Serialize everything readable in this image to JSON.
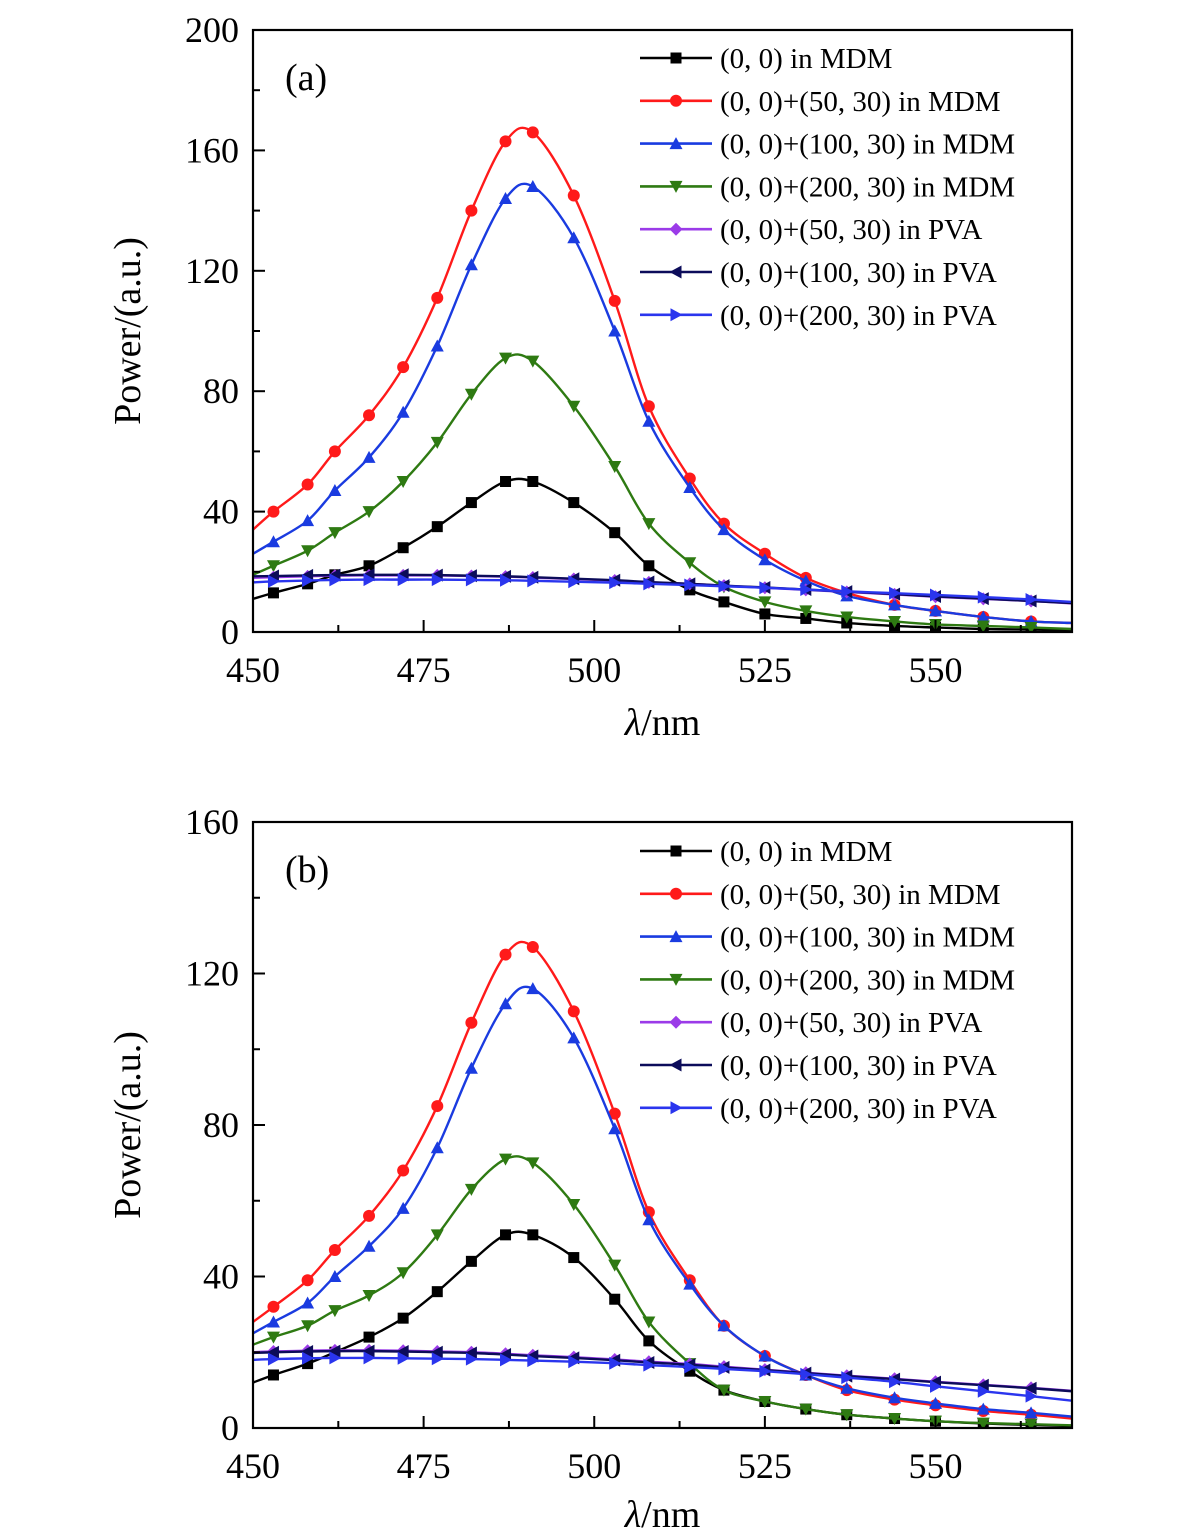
{
  "chart_data": [
    {
      "type": "line",
      "panel_label": "(a)",
      "xlabel_symbol": "λ",
      "xlabel_unit": "/nm",
      "ylabel": "Power/(a.u.)",
      "xlim": [
        450,
        570
      ],
      "ylim": [
        0,
        200
      ],
      "xticks": [
        450,
        475,
        500,
        525,
        550
      ],
      "yticks": [
        0,
        40,
        80,
        120,
        160,
        200
      ],
      "legend_position": "top-right",
      "x": [
        450,
        453,
        458,
        462,
        467,
        472,
        477,
        482,
        487,
        491,
        497,
        503,
        508,
        514,
        519,
        525,
        531,
        537,
        544,
        550,
        557,
        564,
        570
      ],
      "series": [
        {
          "name": "(0, 0) in MDM",
          "color": "#000000",
          "marker": "square",
          "values": [
            11,
            13,
            16,
            19,
            22,
            28,
            35,
            43,
            50,
            50,
            43,
            33,
            22,
            14,
            10,
            6,
            4.5,
            3,
            2,
            1.5,
            1,
            0.8,
            0.5
          ]
        },
        {
          "name": "(0, 0)+(50, 30) in MDM",
          "color": "#ff1a1a",
          "marker": "circle",
          "values": [
            34,
            40,
            49,
            60,
            72,
            88,
            111,
            140,
            163,
            166,
            145,
            110,
            75,
            51,
            36,
            26,
            18,
            13,
            9,
            7,
            5,
            3.5,
            3
          ]
        },
        {
          "name": "(0, 0)+(100, 30) in MDM",
          "color": "#1a3be0",
          "marker": "triangle-up",
          "values": [
            26,
            30,
            37,
            47,
            58,
            73,
            95,
            122,
            144,
            148,
            131,
            100,
            70,
            48,
            34,
            24,
            17,
            12,
            9,
            7,
            5,
            3.5,
            3
          ]
        },
        {
          "name": "(0, 0)+(200, 30) in MDM",
          "color": "#2e7a12",
          "marker": "triangle-down",
          "values": [
            19,
            22,
            27,
            33,
            40,
            50,
            63,
            79,
            91,
            90,
            75,
            55,
            36,
            23,
            15,
            10,
            7,
            5,
            3.5,
            2.5,
            2,
            1.5,
            1
          ]
        },
        {
          "name": "(0, 0)+(50, 30) in PVA",
          "color": "#9b3be8",
          "marker": "diamond",
          "values": [
            18,
            18.2,
            18.5,
            18.7,
            18.8,
            18.8,
            18.8,
            18.6,
            18.4,
            18.1,
            17.6,
            17.1,
            16.5,
            16,
            15.4,
            14.7,
            14,
            13.3,
            12.5,
            11.7,
            11,
            10.3,
            9.5
          ]
        },
        {
          "name": "(0, 0)+(100, 30) in PVA",
          "color": "#0c0c5a",
          "marker": "triangle-left",
          "values": [
            18.5,
            18.6,
            18.8,
            18.9,
            19,
            19,
            18.9,
            18.7,
            18.5,
            18.2,
            17.7,
            17.2,
            16.6,
            16,
            15.4,
            14.8,
            14.1,
            13.4,
            12.6,
            11.8,
            11.1,
            10.3,
            9.6
          ]
        },
        {
          "name": "(0, 0)+(200, 30) in PVA",
          "color": "#2a35ee",
          "marker": "triangle-right",
          "values": [
            16.5,
            16.8,
            17.1,
            17.3,
            17.4,
            17.4,
            17.4,
            17.3,
            17.2,
            17,
            16.7,
            16.4,
            16,
            15.6,
            15.2,
            14.7,
            14.1,
            13.5,
            12.9,
            12.3,
            11.6,
            10.8,
            10
          ]
        }
      ]
    },
    {
      "type": "line",
      "panel_label": "(b)",
      "xlabel_symbol": "λ",
      "xlabel_unit": "/nm",
      "ylabel": "Power/(a.u.)",
      "xlim": [
        450,
        570
      ],
      "ylim": [
        0,
        160
      ],
      "xticks": [
        450,
        475,
        500,
        525,
        550
      ],
      "yticks": [
        0,
        40,
        80,
        120,
        160
      ],
      "legend_position": "top-right",
      "x": [
        450,
        453,
        458,
        462,
        467,
        472,
        477,
        482,
        487,
        491,
        497,
        503,
        508,
        514,
        519,
        525,
        531,
        537,
        544,
        550,
        557,
        564,
        570
      ],
      "series": [
        {
          "name": "(0, 0) in MDM",
          "color": "#000000",
          "marker": "square",
          "values": [
            12,
            14,
            17,
            20,
            24,
            29,
            36,
            44,
            51,
            51,
            45,
            34,
            23,
            15,
            10,
            7,
            5,
            3.5,
            2.5,
            1.8,
            1.2,
            0.8,
            0.5
          ]
        },
        {
          "name": "(0, 0)+(50, 30) in MDM",
          "color": "#ff1a1a",
          "marker": "circle",
          "values": [
            28,
            32,
            39,
            47,
            56,
            68,
            85,
            107,
            125,
            127,
            110,
            83,
            57,
            39,
            27,
            19,
            14,
            10,
            7.5,
            6,
            4.5,
            3.5,
            2.5
          ]
        },
        {
          "name": "(0, 0)+(100, 30) in MDM",
          "color": "#1a3be0",
          "marker": "triangle-up",
          "values": [
            25,
            28,
            33,
            40,
            48,
            58,
            74,
            95,
            112,
            116,
            103,
            79,
            55,
            38,
            27,
            19,
            14,
            10.5,
            8,
            6.5,
            5,
            4,
            3
          ]
        },
        {
          "name": "(0, 0)+(200, 30) in MDM",
          "color": "#2e7a12",
          "marker": "triangle-down",
          "values": [
            22,
            24,
            27,
            31,
            35,
            41,
            51,
            63,
            71,
            70,
            59,
            43,
            28,
            17,
            10,
            7,
            5,
            3.5,
            2.5,
            1.8,
            1.3,
            1,
            0.7
          ]
        },
        {
          "name": "(0, 0)+(50, 30) in PVA",
          "color": "#9b3be8",
          "marker": "diamond",
          "values": [
            20,
            20.2,
            20.4,
            20.5,
            20.5,
            20.4,
            20.2,
            20,
            19.6,
            19.2,
            18.7,
            18.1,
            17.5,
            16.9,
            16.2,
            15.4,
            14.6,
            13.8,
            13,
            12.2,
            11.4,
            10.6,
            9.8
          ]
        },
        {
          "name": "(0, 0)+(100, 30) in PVA",
          "color": "#0c0c5a",
          "marker": "triangle-left",
          "values": [
            19.8,
            20,
            20.2,
            20.3,
            20.3,
            20.2,
            20,
            19.8,
            19.4,
            19,
            18.5,
            17.9,
            17.3,
            16.7,
            16,
            15.3,
            14.5,
            13.7,
            12.9,
            12.1,
            11.3,
            10.5,
            9.7
          ]
        },
        {
          "name": "(0, 0)+(200, 30) in PVA",
          "color": "#2a35ee",
          "marker": "triangle-right",
          "values": [
            18,
            18.2,
            18.4,
            18.5,
            18.5,
            18.4,
            18.3,
            18.2,
            18,
            17.8,
            17.5,
            17.1,
            16.6,
            16.1,
            15.6,
            15,
            14.2,
            13.3,
            12.2,
            11,
            9.7,
            8.4,
            7.2
          ]
        }
      ]
    }
  ]
}
